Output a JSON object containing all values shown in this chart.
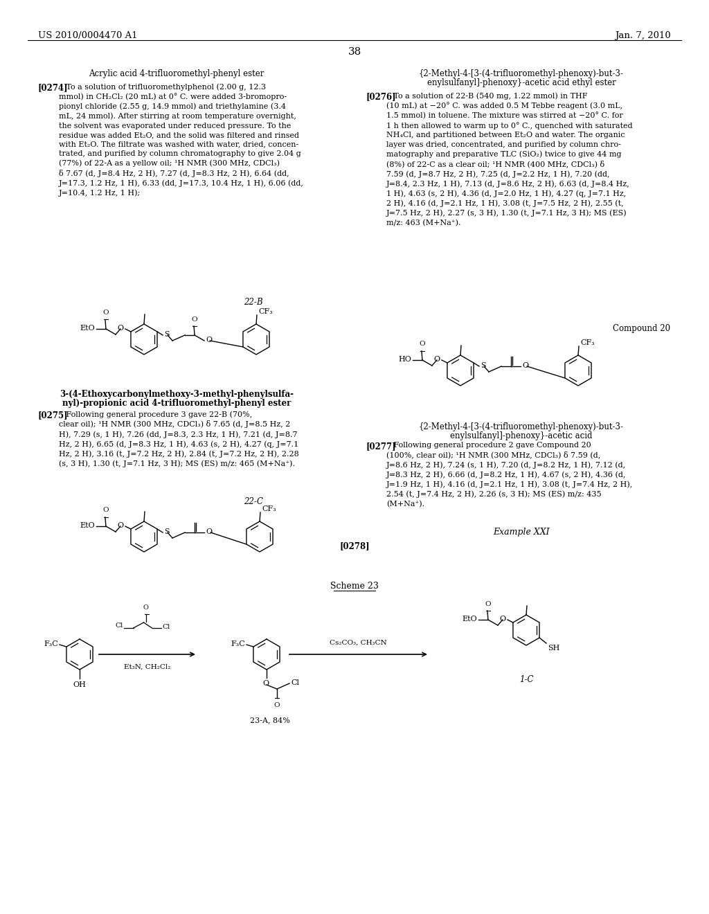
{
  "page_header_left": "US 2010/0004470 A1",
  "page_header_right": "Jan. 7, 2010",
  "page_number": "38",
  "background_color": "#ffffff",
  "text_color": "#000000"
}
